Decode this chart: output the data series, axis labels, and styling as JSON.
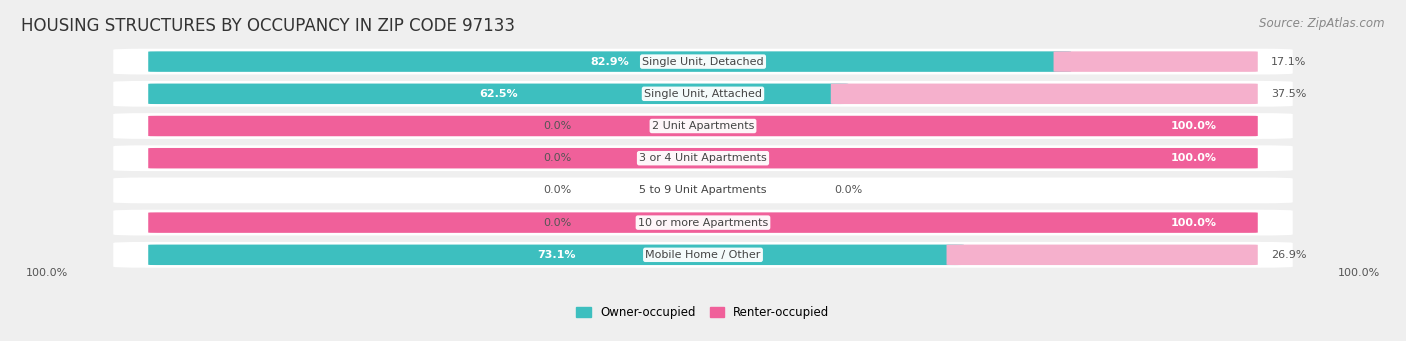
{
  "title": "HOUSING STRUCTURES BY OCCUPANCY IN ZIP CODE 97133",
  "source": "Source: ZipAtlas.com",
  "categories": [
    "Single Unit, Detached",
    "Single Unit, Attached",
    "2 Unit Apartments",
    "3 or 4 Unit Apartments",
    "5 to 9 Unit Apartments",
    "10 or more Apartments",
    "Mobile Home / Other"
  ],
  "owner_pct": [
    82.9,
    62.5,
    0.0,
    0.0,
    0.0,
    0.0,
    73.1
  ],
  "renter_pct": [
    17.1,
    37.5,
    100.0,
    100.0,
    0.0,
    100.0,
    26.9
  ],
  "owner_color": "#3DBFBF",
  "renter_color": "#F0609A",
  "owner_color_light": "#92D4D4",
  "renter_color_light": "#F5B0CC",
  "background_color": "#EFEFEF",
  "row_bg_color": "#FFFFFF",
  "title_fontsize": 12,
  "source_fontsize": 8.5,
  "label_fontsize": 8,
  "pct_fontsize": 8,
  "bar_height": 0.62,
  "figsize": [
    14.06,
    3.41
  ]
}
